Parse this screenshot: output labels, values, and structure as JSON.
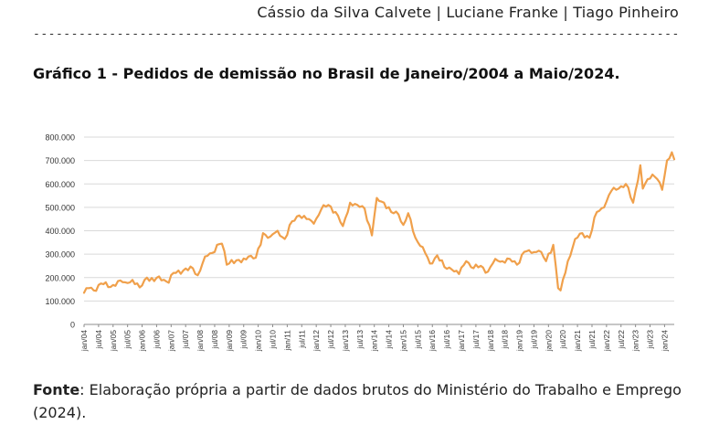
{
  "header": {
    "authors": "Cássio da Silva Calvete | Luciane Franke | Tiago Pinheiro",
    "divider": "------------------------------------------------------------------------------------------------"
  },
  "chart_title": "Gráfico 1 - Pedidos de demissão no Brasil de Janeiro/2004 a Maio/2024.",
  "source": {
    "label": "Fonte",
    "text": ": Elaboração própria a partir de dados brutos do Ministério do Trabalho e Emprego (2024)."
  },
  "chart_data": {
    "type": "line",
    "title": "",
    "xlabel": "",
    "ylabel": "",
    "ylim": [
      0,
      800000
    ],
    "yticks": [
      0,
      100000,
      200000,
      300000,
      400000,
      500000,
      600000,
      700000,
      800000
    ],
    "ytick_labels": [
      "0",
      "100.000",
      "200.000",
      "300.000",
      "400.000",
      "500.000",
      "600.000",
      "700.000",
      "800.000"
    ],
    "xtick_labels": [
      "jan/04",
      "jul/04",
      "jan/05",
      "jul/05",
      "jan/06",
      "jul/06",
      "jan/07",
      "jul/07",
      "jan/08",
      "jul/08",
      "jan/09",
      "jul/09",
      "jan/10",
      "jul/10",
      "jan/11",
      "jul/11",
      "jan/12",
      "jul/12",
      "jan/13",
      "jul/13",
      "jan/14",
      "jul/14",
      "jan/15",
      "jul/15",
      "jan/16",
      "jul/16",
      "jan/17",
      "jul/17",
      "jan/18",
      "jul/18",
      "jan/19",
      "jul/19",
      "jan/20",
      "jul/20",
      "jan/21",
      "jul/21",
      "jan/22",
      "jul/22",
      "jan/23",
      "jul/23",
      "jan/24"
    ],
    "grid": true,
    "legend": "none",
    "line_color": "#f0a04b",
    "series": [
      {
        "start": "2004-01",
        "end": "2024-05",
        "anchors": [
          [
            "2004-01",
            135000
          ],
          [
            "2004-03",
            155000
          ],
          [
            "2004-05",
            145000
          ],
          [
            "2004-08",
            175000
          ],
          [
            "2004-12",
            160000
          ],
          [
            "2005-03",
            185000
          ],
          [
            "2005-06",
            180000
          ],
          [
            "2005-09",
            190000
          ],
          [
            "2005-12",
            158000
          ],
          [
            "2006-03",
            200000
          ],
          [
            "2006-06",
            185000
          ],
          [
            "2006-08",
            205000
          ],
          [
            "2006-12",
            178000
          ],
          [
            "2007-02",
            220000
          ],
          [
            "2007-06",
            230000
          ],
          [
            "2007-10",
            240000
          ],
          [
            "2007-12",
            210000
          ],
          [
            "2008-03",
            290000
          ],
          [
            "2008-06",
            305000
          ],
          [
            "2008-08",
            340000
          ],
          [
            "2008-10",
            345000
          ],
          [
            "2008-12",
            255000
          ],
          [
            "2009-02",
            275000
          ],
          [
            "2009-06",
            265000
          ],
          [
            "2009-09",
            290000
          ],
          [
            "2009-12",
            285000
          ],
          [
            "2010-02",
            340000
          ],
          [
            "2010-03",
            390000
          ],
          [
            "2010-06",
            375000
          ],
          [
            "2010-09",
            400000
          ],
          [
            "2010-12",
            365000
          ],
          [
            "2011-03",
            440000
          ],
          [
            "2011-06",
            465000
          ],
          [
            "2011-09",
            450000
          ],
          [
            "2011-12",
            430000
          ],
          [
            "2012-03",
            490000
          ],
          [
            "2012-06",
            510000
          ],
          [
            "2012-09",
            480000
          ],
          [
            "2012-12",
            420000
          ],
          [
            "2013-03",
            520000
          ],
          [
            "2013-06",
            510000
          ],
          [
            "2013-09",
            495000
          ],
          [
            "2013-12",
            380000
          ],
          [
            "2014-02",
            540000
          ],
          [
            "2014-05",
            520000
          ],
          [
            "2014-08",
            480000
          ],
          [
            "2014-11",
            470000
          ],
          [
            "2015-01",
            425000
          ],
          [
            "2015-03",
            475000
          ],
          [
            "2015-06",
            370000
          ],
          [
            "2015-09",
            330000
          ],
          [
            "2015-12",
            260000
          ],
          [
            "2016-03",
            295000
          ],
          [
            "2016-06",
            245000
          ],
          [
            "2016-09",
            235000
          ],
          [
            "2016-12",
            215000
          ],
          [
            "2017-03",
            270000
          ],
          [
            "2017-06",
            240000
          ],
          [
            "2017-09",
            250000
          ],
          [
            "2017-12",
            225000
          ],
          [
            "2018-03",
            280000
          ],
          [
            "2018-06",
            270000
          ],
          [
            "2018-09",
            280000
          ],
          [
            "2018-12",
            255000
          ],
          [
            "2019-03",
            310000
          ],
          [
            "2019-06",
            305000
          ],
          [
            "2019-09",
            315000
          ],
          [
            "2019-12",
            270000
          ],
          [
            "2020-03",
            340000
          ],
          [
            "2020-05",
            155000
          ],
          [
            "2020-06",
            145000
          ],
          [
            "2020-09",
            270000
          ],
          [
            "2020-12",
            365000
          ],
          [
            "2021-03",
            390000
          ],
          [
            "2021-06",
            370000
          ],
          [
            "2021-09",
            480000
          ],
          [
            "2021-12",
            500000
          ],
          [
            "2022-03",
            570000
          ],
          [
            "2022-06",
            580000
          ],
          [
            "2022-09",
            600000
          ],
          [
            "2022-12",
            520000
          ],
          [
            "2023-03",
            680000
          ],
          [
            "2023-04",
            580000
          ],
          [
            "2023-06",
            620000
          ],
          [
            "2023-08",
            640000
          ],
          [
            "2023-10",
            620000
          ],
          [
            "2023-12",
            575000
          ],
          [
            "2024-02",
            700000
          ],
          [
            "2024-04",
            735000
          ],
          [
            "2024-05",
            705000
          ]
        ]
      }
    ]
  }
}
